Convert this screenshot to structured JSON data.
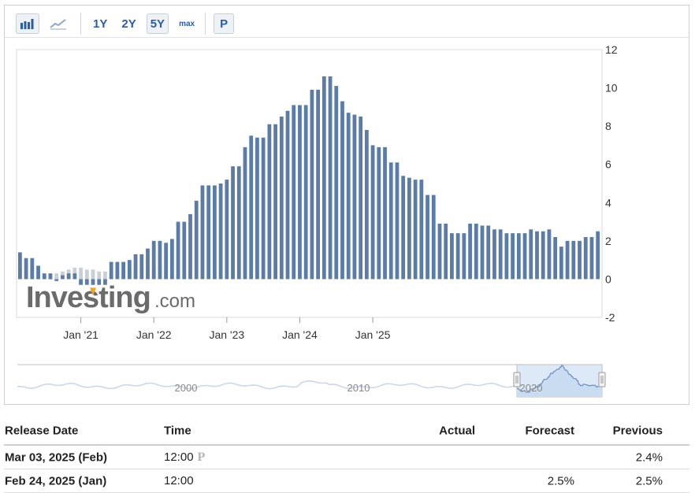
{
  "toolbar": {
    "chart_type_buttons": [
      {
        "icon": "bar-chart-icon",
        "active": true
      },
      {
        "icon": "line-chart-icon",
        "active": false
      }
    ],
    "ranges": [
      {
        "label": "1Y",
        "active": false
      },
      {
        "label": "2Y",
        "active": false
      },
      {
        "label": "5Y",
        "active": true
      },
      {
        "label": "max",
        "active": false
      }
    ],
    "preliminary_label": "P"
  },
  "watermark": {
    "brand": "Investing",
    "suffix": ".com"
  },
  "colors": {
    "bar_final": "#5b7ba8",
    "bar_preliminary": "#c9cfd8",
    "navigator_fill": "#c9dcf2",
    "navigator_line": "#6a8fc4",
    "marker": "#f0a32a"
  },
  "chart_data": {
    "type": "bar",
    "title": "",
    "xlabel": "",
    "ylabel": "",
    "ylim": [
      -2,
      12
    ],
    "yticks": [
      -2,
      0,
      2,
      4,
      6,
      8,
      10,
      12
    ],
    "x_start": "2020-03",
    "x_tick_labels": [
      {
        "label": "Jan '21",
        "date": "2021-01"
      },
      {
        "label": "Jan '22",
        "date": "2022-01"
      },
      {
        "label": "Jan '23",
        "date": "2023-01"
      },
      {
        "label": "Jan '24",
        "date": "2024-01"
      },
      {
        "label": "Jan '25",
        "date": "2025-01"
      }
    ],
    "series": [
      {
        "values": [
          1.4,
          1.1,
          1.1,
          0.7,
          0.3,
          0.3,
          -0.1,
          0.2,
          0.3,
          0.3,
          -0.3,
          -0.3,
          -0.3,
          -0.3,
          -0.3,
          0.9,
          0.9,
          0.9,
          1.0,
          1.3,
          1.3,
          1.6,
          2.0,
          2.0,
          1.9,
          2.1,
          3.0,
          3.0,
          3.4,
          4.1,
          4.9,
          4.9,
          4.9,
          5.0,
          5.2,
          5.9,
          5.9,
          6.9,
          7.5,
          7.4,
          7.4,
          8.1,
          8.1,
          8.5,
          8.8,
          9.1,
          9.1,
          9.1,
          9.9,
          9.9,
          10.6,
          10.6,
          10.1,
          9.3,
          8.7,
          8.6,
          8.5,
          7.8,
          7.0,
          6.9,
          6.9,
          6.1,
          6.1,
          5.4,
          5.3,
          5.2,
          5.2,
          4.4,
          4.4,
          2.9,
          2.9,
          2.4,
          2.4,
          2.4,
          2.9,
          2.9,
          2.8,
          2.8,
          2.6,
          2.6,
          2.4,
          2.4,
          2.4,
          2.4,
          2.6,
          2.5,
          2.5,
          2.6,
          2.2,
          1.7,
          2.0,
          2.0,
          2.0,
          2.2,
          2.2,
          2.5
        ]
      }
    ],
    "preliminary_values": [
      0.6,
      0.4,
      0.1,
      0.3,
      0.2,
      0.0,
      0.3,
      0.4,
      0.5,
      0.6,
      0.6,
      0.5,
      0.5,
      0.4,
      0.4,
      0.3,
      0.4,
      0.5,
      0.5,
      0.6,
      0.6,
      0.6,
      0.5,
      0.5,
      0.4,
      0.5,
      0.3,
      0.3,
      0.4
    ],
    "navigator": {
      "axis_labels": [
        "2000",
        "2010",
        "2020"
      ]
    }
  },
  "table": {
    "headers": {
      "date": "Release Date",
      "time": "Time",
      "actual": "Actual",
      "forecast": "Forecast",
      "previous": "Previous"
    },
    "rows": [
      {
        "date": "Mar 03, 2025 (Feb)",
        "time": "12:00",
        "preliminary": "P",
        "actual": "",
        "forecast": "",
        "previous": "2.4%"
      },
      {
        "date": "Feb 24, 2025 (Jan)",
        "time": "12:00",
        "preliminary": "",
        "actual": "",
        "forecast": "2.5%",
        "previous": "2.5%"
      }
    ]
  }
}
